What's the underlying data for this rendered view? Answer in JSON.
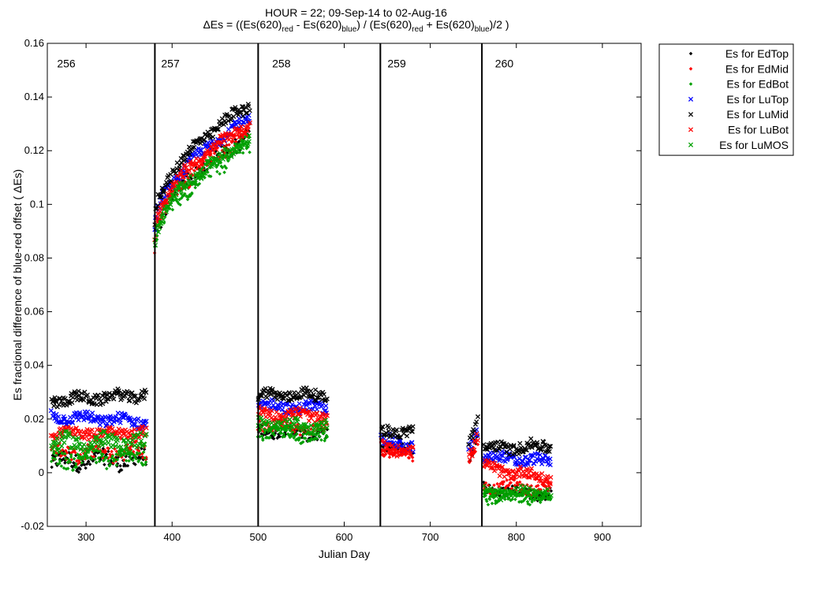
{
  "chart_data": {
    "type": "scatter",
    "title_line1": "HOUR = 22; 09-Sep-14 to 02-Aug-16",
    "title_line2_parts": {
      "prefix": "ΔEs = ((Es(620)",
      "sub_red": "red",
      "minus": " - Es(620)",
      "sub_blue": "blue",
      "mid": ") / (Es(620)",
      "plus": " + Es(620)",
      "suffix": ")/2  )"
    },
    "xlabel": "Julian Day",
    "ylabel": "Es fractional difference of blue-red offset ( ΔEs)",
    "xlim": [
      255,
      945
    ],
    "ylim": [
      -0.02,
      0.16
    ],
    "xticks": [
      300,
      400,
      500,
      600,
      700,
      800,
      900
    ],
    "yticks": [
      -0.02,
      0,
      0.02,
      0.04,
      0.06,
      0.08,
      0.1,
      0.12,
      0.14,
      0.16
    ],
    "ytick_labels": [
      "-0.02",
      "0",
      "0.02",
      "0.04",
      "0.06",
      "0.08",
      "0.1",
      "0.12",
      "0.14",
      "0.16"
    ],
    "grid": false,
    "legend_position": "outside-top-right",
    "deployment_boundaries": [
      380,
      500,
      642,
      760
    ],
    "deployment_labels": [
      {
        "label": "256",
        "x": 277
      },
      {
        "label": "257",
        "x": 398
      },
      {
        "label": "258",
        "x": 527
      },
      {
        "label": "259",
        "x": 661
      },
      {
        "label": "260",
        "x": 786
      }
    ],
    "series": [
      {
        "name": "Es for EdTop",
        "color": "#000000",
        "marker": "dot",
        "segments": [
          {
            "x": [
              260,
              370
            ],
            "y": [
              0.004,
              0.005
            ],
            "spread": 0.003
          },
          {
            "x": [
              380,
              490
            ],
            "y": [
              0.085,
              0.126
            ],
            "spread": 0.003,
            "curve": "sqrt"
          },
          {
            "x": [
              500,
              580
            ],
            "y": [
              0.016,
              0.014
            ],
            "spread": 0.002
          },
          {
            "x": [
              643,
              680
            ],
            "y": [
              0.01,
              0.008
            ],
            "spread": 0.002
          },
          {
            "x": [
              745,
              755
            ],
            "y": [
              0.005,
              0.012
            ],
            "spread": 0.002
          },
          {
            "x": [
              762,
              840
            ],
            "y": [
              -0.006,
              -0.008
            ],
            "spread": 0.002
          }
        ]
      },
      {
        "name": "Es for EdMid",
        "color": "#ff0000",
        "marker": "dot",
        "segments": [
          {
            "x": [
              260,
              370
            ],
            "y": [
              0.007,
              0.008
            ],
            "spread": 0.003
          },
          {
            "x": [
              380,
              490
            ],
            "y": [
              0.085,
              0.127
            ],
            "spread": 0.003,
            "curve": "sqrt"
          },
          {
            "x": [
              500,
              580
            ],
            "y": [
              0.018,
              0.016
            ],
            "spread": 0.002
          },
          {
            "x": [
              643,
              680
            ],
            "y": [
              0.008,
              0.007
            ],
            "spread": 0.002
          },
          {
            "x": [
              745,
              755
            ],
            "y": [
              0.004,
              0.01
            ],
            "spread": 0.002
          },
          {
            "x": [
              762,
              840
            ],
            "y": [
              -0.005,
              -0.006
            ],
            "spread": 0.002
          }
        ]
      },
      {
        "name": "Es for EdBot",
        "color": "#00a000",
        "marker": "dot",
        "segments": [
          {
            "x": [
              260,
              370
            ],
            "y": [
              0.005,
              0.006
            ],
            "spread": 0.003
          },
          {
            "x": [
              380,
              490
            ],
            "y": [
              0.082,
              0.122
            ],
            "spread": 0.003,
            "curve": "sqrt"
          },
          {
            "x": [
              500,
              580
            ],
            "y": [
              0.015,
              0.013
            ],
            "spread": 0.002
          },
          {
            "x": [
              762,
              840
            ],
            "y": [
              -0.009,
              -0.01
            ],
            "spread": 0.002
          }
        ]
      },
      {
        "name": "Es for LuTop",
        "color": "#0000ff",
        "marker": "x",
        "segments": [
          {
            "x": [
              260,
              370
            ],
            "y": [
              0.021,
              0.019
            ],
            "spread": 0.002
          },
          {
            "x": [
              380,
              490
            ],
            "y": [
              0.09,
              0.132
            ],
            "spread": 0.002,
            "curve": "sqrt"
          },
          {
            "x": [
              500,
              580
            ],
            "y": [
              0.025,
              0.024
            ],
            "spread": 0.002
          },
          {
            "x": [
              643,
              680
            ],
            "y": [
              0.012,
              0.01
            ],
            "spread": 0.002
          },
          {
            "x": [
              745,
              755
            ],
            "y": [
              0.008,
              0.016
            ],
            "spread": 0.002
          },
          {
            "x": [
              762,
              840
            ],
            "y": [
              0.006,
              0.004
            ],
            "spread": 0.002
          }
        ]
      },
      {
        "name": "Es for LuMid",
        "color": "#000000",
        "marker": "x",
        "segments": [
          {
            "x": [
              260,
              370
            ],
            "y": [
              0.027,
              0.029
            ],
            "spread": 0.002
          },
          {
            "x": [
              380,
              490
            ],
            "y": [
              0.093,
              0.137
            ],
            "spread": 0.002,
            "curve": "sqrt"
          },
          {
            "x": [
              500,
              580
            ],
            "y": [
              0.029,
              0.029
            ],
            "spread": 0.002
          },
          {
            "x": [
              643,
              680
            ],
            "y": [
              0.015,
              0.016
            ],
            "spread": 0.002
          },
          {
            "x": [
              745,
              755
            ],
            "y": [
              0.012,
              0.02
            ],
            "spread": 0.002
          },
          {
            "x": [
              762,
              840
            ],
            "y": [
              0.009,
              0.01
            ],
            "spread": 0.002
          }
        ]
      },
      {
        "name": "Es for LuBot",
        "color": "#ff0000",
        "marker": "x",
        "segments": [
          {
            "x": [
              260,
              370
            ],
            "y": [
              0.015,
              0.015
            ],
            "spread": 0.002
          },
          {
            "x": [
              380,
              490
            ],
            "y": [
              0.088,
              0.13
            ],
            "spread": 0.002,
            "curve": "sqrt"
          },
          {
            "x": [
              500,
              580
            ],
            "y": [
              0.022,
              0.021
            ],
            "spread": 0.002
          },
          {
            "x": [
              643,
              680
            ],
            "y": [
              0.01,
              0.008
            ],
            "spread": 0.002
          },
          {
            "x": [
              745,
              755
            ],
            "y": [
              0.006,
              0.014
            ],
            "spread": 0.002
          },
          {
            "x": [
              762,
              840
            ],
            "y": [
              0.002,
              -0.002
            ],
            "spread": 0.002
          }
        ]
      },
      {
        "name": "Es for LuMOS",
        "color": "#00a000",
        "marker": "x",
        "segments": [
          {
            "x": [
              260,
              370
            ],
            "y": [
              0.011,
              0.011
            ],
            "spread": 0.003
          },
          {
            "x": [
              380,
              490
            ],
            "y": [
              0.085,
              0.124
            ],
            "spread": 0.002,
            "curve": "sqrt"
          },
          {
            "x": [
              500,
              580
            ],
            "y": [
              0.018,
              0.017
            ],
            "spread": 0.002
          },
          {
            "x": [
              762,
              840
            ],
            "y": [
              -0.007,
              -0.008
            ],
            "spread": 0.002
          }
        ]
      }
    ]
  }
}
